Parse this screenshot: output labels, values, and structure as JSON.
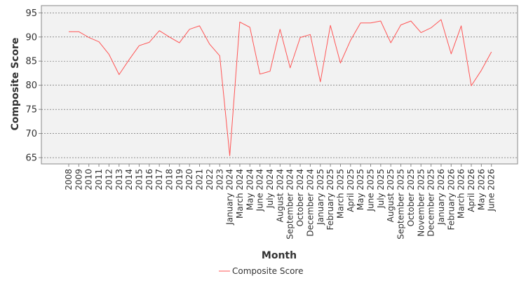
{
  "chart_data": {
    "type": "line",
    "title": "",
    "xlabel": "Month",
    "ylabel": "Composite Score",
    "ylim": [
      63.7,
      96.5
    ],
    "y_ticks": [
      65,
      70,
      75,
      80,
      85,
      90,
      95
    ],
    "grid": true,
    "legend": "bottom-center",
    "categories": [
      "2008",
      "2009",
      "2010",
      "2011",
      "2012",
      "2013",
      "2014",
      "2015",
      "2016",
      "2017",
      "2018",
      "2019",
      "2020",
      "2021",
      "2022",
      "2023",
      "January 2024",
      "March 2024",
      "May 2024",
      "June 2024",
      "July 2024",
      "August 2024",
      "September 2024",
      "October 2024",
      "December 2024",
      "January 2025",
      "February 2025",
      "March 2025",
      "April 2025",
      "May 2025",
      "June 2025",
      "July 2025",
      "August 2025",
      "September 2025",
      "October 2025",
      "November 2025",
      "December 2025",
      "January 2026",
      "February 2026",
      "March 2026",
      "April 2026",
      "May 2026",
      "June 2026"
    ],
    "series": [
      {
        "name": "Composite Score",
        "color": "#ff5555",
        "values": [
          91.1,
          91.1,
          89.9,
          89.0,
          86.4,
          82.2,
          85.3,
          88.2,
          88.9,
          91.3,
          90.0,
          88.8,
          91.6,
          92.3,
          88.5,
          86.1,
          65.4,
          93.1,
          92.0,
          82.3,
          82.9,
          91.6,
          83.6,
          89.9,
          90.5,
          80.7,
          92.4,
          84.6,
          89.3,
          92.9,
          92.9,
          93.3,
          88.8,
          92.5,
          93.3,
          90.9,
          91.9,
          93.6,
          86.5,
          92.3,
          79.9,
          83.1,
          86.9
        ]
      }
    ]
  },
  "colors": {
    "plot_background": "#f2f2f2",
    "grid": "#555555",
    "axis": "#888888",
    "text": "#333333"
  }
}
